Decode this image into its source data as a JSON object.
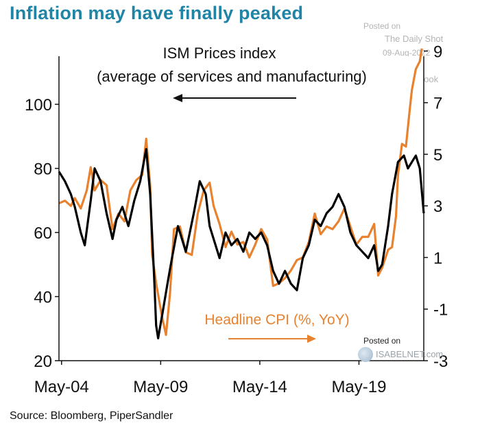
{
  "title": "Inflation may have finally peaked",
  "watermark": {
    "posted_on": "Posted on",
    "site": "The Daily Shot",
    "date": "09-Aug-2022",
    "credit": "@SoberLook"
  },
  "watermark2": {
    "posted_on": "Posted on",
    "site": "ISABELNET.com"
  },
  "source": "Source: Bloomberg, PiperSandler",
  "chart_data": {
    "type": "line",
    "annotations": {
      "ism_line1": "ISM Prices index",
      "ism_line2": "(average of services and manufacturing)",
      "cpi_label": "Headline CPI (%, YoY)"
    },
    "x_ticks": [
      "May-04",
      "May-09",
      "May-14",
      "May-19"
    ],
    "x_range": [
      2004.2,
      2022.6
    ],
    "left_axis": {
      "ticks": [
        "20",
        "40",
        "60",
        "80",
        "100"
      ],
      "range": [
        20,
        115
      ]
    },
    "right_axis": {
      "ticks": [
        "-3",
        "-1",
        "1",
        "3",
        "5",
        "7",
        "9"
      ],
      "range": [
        -3,
        8.8
      ]
    },
    "colors": {
      "ism": "#000000",
      "cpi": "#e8822e",
      "axis": "#111111"
    },
    "series": [
      {
        "name": "ISM Prices index",
        "axis": "left",
        "points": [
          [
            2004.2,
            79
          ],
          [
            2004.5,
            76
          ],
          [
            2004.8,
            72
          ],
          [
            2005.0,
            68
          ],
          [
            2005.3,
            60
          ],
          [
            2005.5,
            56
          ],
          [
            2005.8,
            70
          ],
          [
            2006.0,
            80
          ],
          [
            2006.3,
            76
          ],
          [
            2006.6,
            66
          ],
          [
            2006.9,
            58
          ],
          [
            2007.1,
            64
          ],
          [
            2007.4,
            68
          ],
          [
            2007.7,
            62
          ],
          [
            2008.0,
            70
          ],
          [
            2008.3,
            76
          ],
          [
            2008.6,
            86
          ],
          [
            2008.8,
            72
          ],
          [
            2009.0,
            46
          ],
          [
            2009.1,
            31
          ],
          [
            2009.2,
            27
          ],
          [
            2009.4,
            34
          ],
          [
            2009.7,
            45
          ],
          [
            2009.9,
            52
          ],
          [
            2010.2,
            62
          ],
          [
            2010.4,
            58
          ],
          [
            2010.6,
            54
          ],
          [
            2010.8,
            60
          ],
          [
            2011.0,
            66
          ],
          [
            2011.3,
            76
          ],
          [
            2011.6,
            72
          ],
          [
            2011.8,
            62
          ],
          [
            2012.0,
            58
          ],
          [
            2012.3,
            52
          ],
          [
            2012.6,
            60
          ],
          [
            2012.9,
            56
          ],
          [
            2013.2,
            58
          ],
          [
            2013.5,
            54
          ],
          [
            2013.8,
            60
          ],
          [
            2014.1,
            58
          ],
          [
            2014.4,
            60
          ],
          [
            2014.7,
            56
          ],
          [
            2015.0,
            48
          ],
          [
            2015.3,
            44
          ],
          [
            2015.6,
            48
          ],
          [
            2015.9,
            44
          ],
          [
            2016.2,
            42
          ],
          [
            2016.5,
            52
          ],
          [
            2016.8,
            56
          ],
          [
            2017.1,
            64
          ],
          [
            2017.4,
            62
          ],
          [
            2017.7,
            66
          ],
          [
            2018.0,
            68
          ],
          [
            2018.3,
            72
          ],
          [
            2018.6,
            68
          ],
          [
            2018.9,
            60
          ],
          [
            2019.2,
            56
          ],
          [
            2019.5,
            54
          ],
          [
            2019.8,
            52
          ],
          [
            2020.1,
            56
          ],
          [
            2020.3,
            48
          ],
          [
            2020.5,
            50
          ],
          [
            2020.8,
            62
          ],
          [
            2021.0,
            72
          ],
          [
            2021.3,
            82
          ],
          [
            2021.6,
            84
          ],
          [
            2021.8,
            80
          ],
          [
            2022.0,
            82
          ],
          [
            2022.2,
            84
          ],
          [
            2022.4,
            80
          ],
          [
            2022.6,
            66
          ]
        ]
      },
      {
        "name": "Headline CPI (%, YoY)",
        "axis": "right",
        "points": [
          [
            2004.2,
            3.1
          ],
          [
            2004.5,
            3.2
          ],
          [
            2004.8,
            3.0
          ],
          [
            2005.0,
            3.3
          ],
          [
            2005.3,
            2.9
          ],
          [
            2005.6,
            3.6
          ],
          [
            2005.8,
            4.5
          ],
          [
            2006.0,
            3.6
          ],
          [
            2006.3,
            4.0
          ],
          [
            2006.6,
            3.8
          ],
          [
            2006.9,
            2.1
          ],
          [
            2007.2,
            2.7
          ],
          [
            2007.5,
            2.4
          ],
          [
            2007.8,
            3.6
          ],
          [
            2008.1,
            4.0
          ],
          [
            2008.4,
            4.2
          ],
          [
            2008.6,
            5.6
          ],
          [
            2008.8,
            3.8
          ],
          [
            2008.9,
            1.1
          ],
          [
            2009.1,
            0.0
          ],
          [
            2009.4,
            -1.3
          ],
          [
            2009.6,
            -2.0
          ],
          [
            2009.8,
            -0.4
          ],
          [
            2010.0,
            2.1
          ],
          [
            2010.3,
            2.2
          ],
          [
            2010.6,
            1.2
          ],
          [
            2010.9,
            1.1
          ],
          [
            2011.2,
            2.7
          ],
          [
            2011.5,
            3.6
          ],
          [
            2011.8,
            3.9
          ],
          [
            2012.0,
            3.0
          ],
          [
            2012.3,
            2.3
          ],
          [
            2012.6,
            1.4
          ],
          [
            2012.9,
            2.0
          ],
          [
            2013.2,
            1.5
          ],
          [
            2013.5,
            1.6
          ],
          [
            2013.8,
            1.0
          ],
          [
            2014.1,
            1.5
          ],
          [
            2014.4,
            2.1
          ],
          [
            2014.7,
            1.7
          ],
          [
            2015.0,
            -0.1
          ],
          [
            2015.3,
            0.0
          ],
          [
            2015.6,
            0.2
          ],
          [
            2015.9,
            0.5
          ],
          [
            2016.2,
            0.9
          ],
          [
            2016.5,
            1.0
          ],
          [
            2016.8,
            1.6
          ],
          [
            2017.1,
            2.7
          ],
          [
            2017.4,
            1.9
          ],
          [
            2017.7,
            2.2
          ],
          [
            2018.0,
            2.1
          ],
          [
            2018.3,
            2.4
          ],
          [
            2018.6,
            2.9
          ],
          [
            2018.9,
            2.2
          ],
          [
            2019.2,
            1.5
          ],
          [
            2019.5,
            1.8
          ],
          [
            2019.8,
            1.8
          ],
          [
            2020.1,
            2.3
          ],
          [
            2020.3,
            0.3
          ],
          [
            2020.5,
            0.6
          ],
          [
            2020.8,
            1.3
          ],
          [
            2021.0,
            1.4
          ],
          [
            2021.2,
            2.6
          ],
          [
            2021.3,
            4.2
          ],
          [
            2021.5,
            5.4
          ],
          [
            2021.7,
            5.3
          ],
          [
            2021.9,
            6.8
          ],
          [
            2022.0,
            7.5
          ],
          [
            2022.2,
            8.3
          ],
          [
            2022.4,
            8.6
          ],
          [
            2022.5,
            9.1
          ]
        ]
      }
    ]
  }
}
